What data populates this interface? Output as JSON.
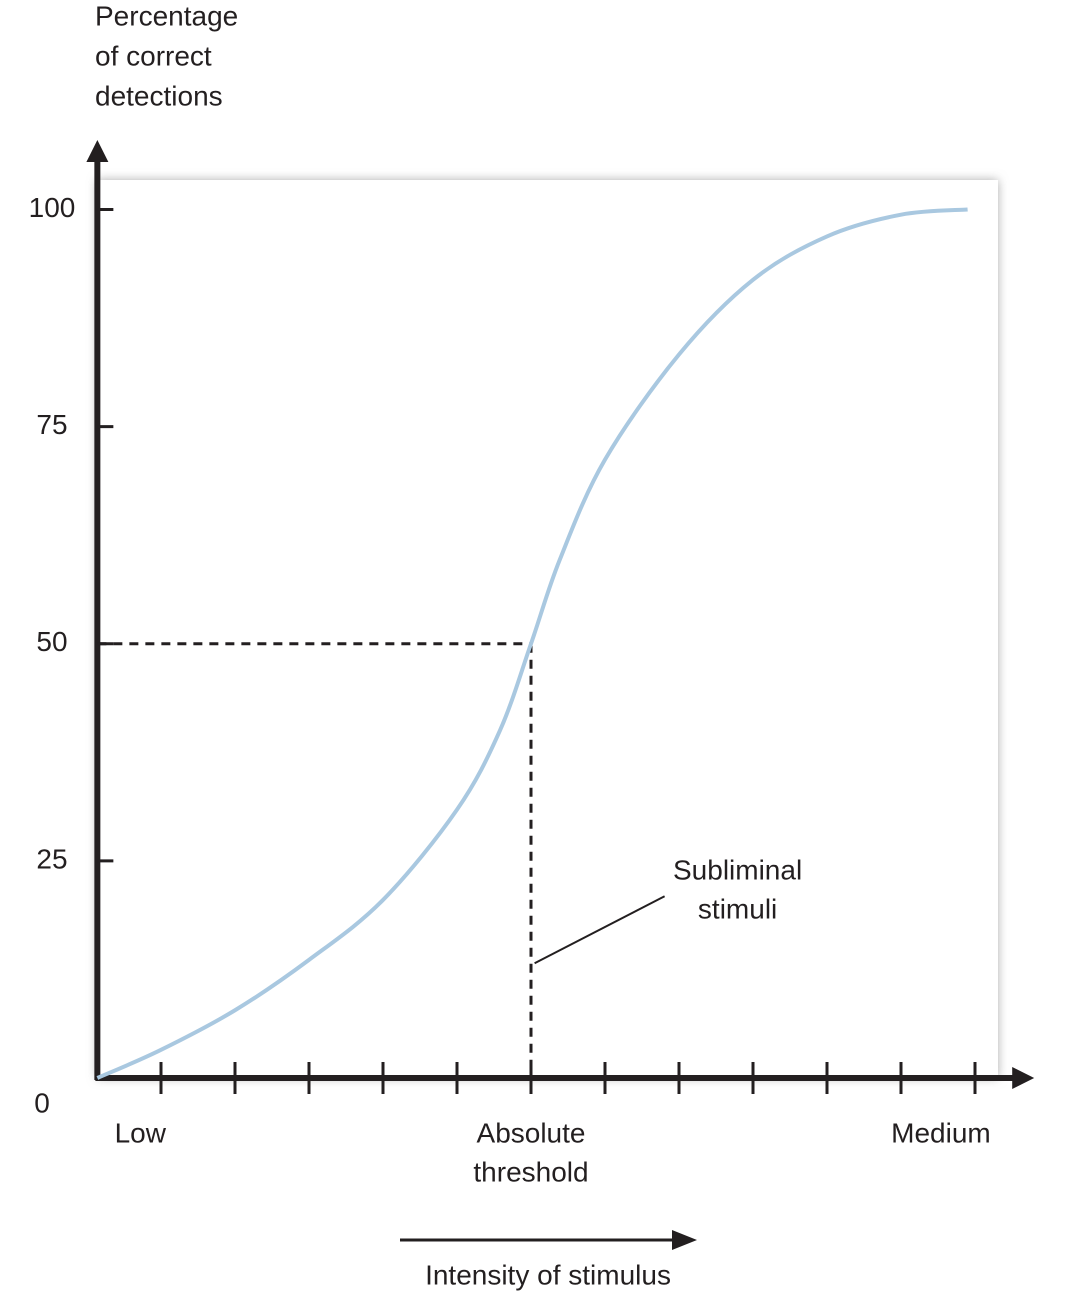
{
  "chart_data": {
    "type": "line",
    "ylabel": [
      "Percentage",
      "of correct",
      "detections"
    ],
    "xlabel": "Intensity of stimulus",
    "x": [
      0.14,
      0.99,
      2,
      3,
      4,
      5,
      5.58,
      6,
      6.39,
      7,
      8,
      9,
      10,
      11,
      11.9
    ],
    "series": [
      {
        "color": "#a9c8e0",
        "values": [
          0,
          3.2,
          7.8,
          13.6,
          20.5,
          30.9,
          40,
          50,
          59.7,
          71.2,
          83.3,
          91.9,
          96.9,
          99.4,
          100
        ]
      }
    ],
    "xlim": [
      0.14,
      12.8
    ],
    "ylim": [
      0,
      108
    ],
    "yticks": [
      0,
      25,
      50,
      75,
      100
    ],
    "x_tick_marks": [
      1,
      2,
      3,
      4,
      5,
      6,
      7,
      8,
      9,
      10,
      11,
      12
    ],
    "x_labels": [
      {
        "value": 0.72,
        "label": [
          "Low"
        ]
      },
      {
        "value": 6,
        "label": [
          "Absolute",
          "threshold"
        ]
      },
      {
        "value": 11.54,
        "label": [
          "Medium"
        ]
      }
    ],
    "threshold": {
      "x": 6,
      "y": 50
    },
    "annotation": {
      "x": 7.4,
      "y": 20.7,
      "label": [
        "Subliminal",
        "stimuli"
      ]
    }
  }
}
